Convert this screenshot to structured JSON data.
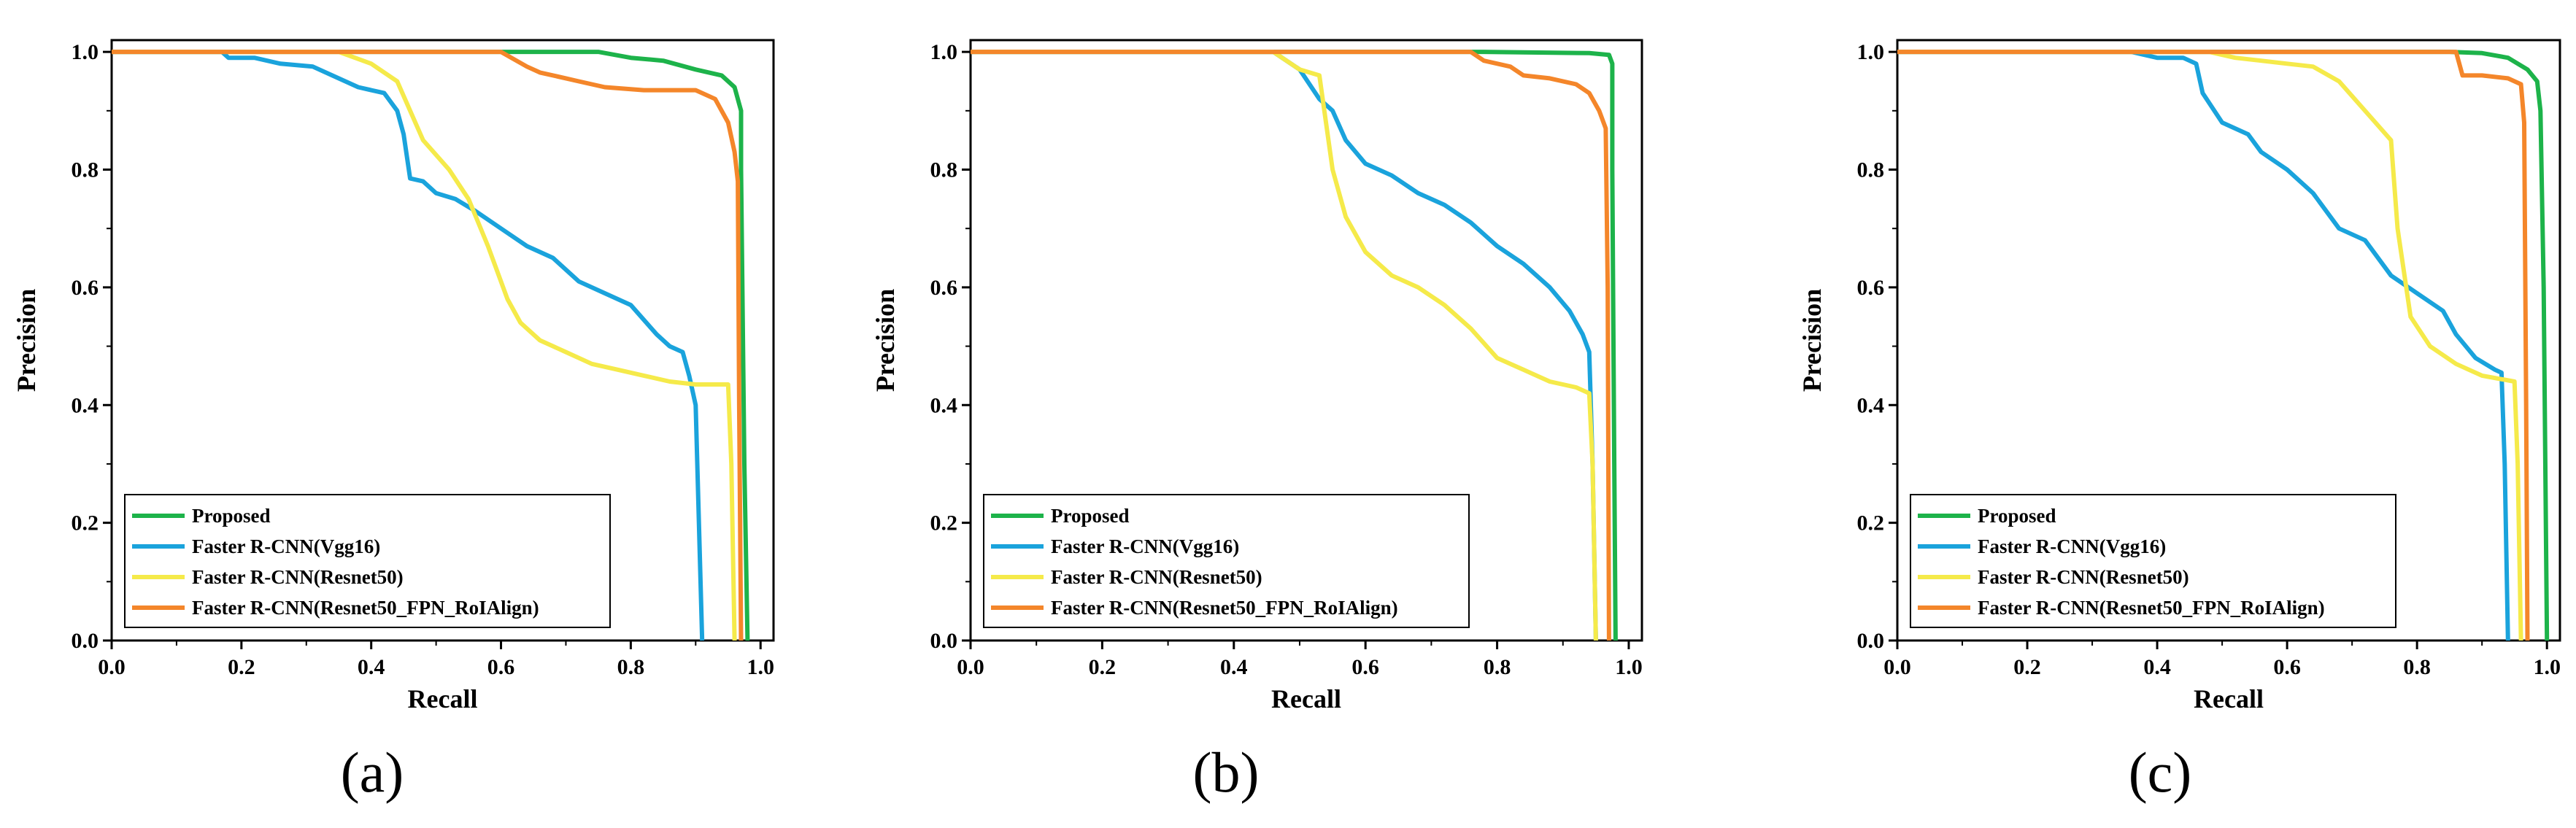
{
  "colors": {
    "Proposed": "#1db34a",
    "Faster R-CNN(Vgg16)": "#1aa3dc",
    "Faster R-CNN(Resnet50)": "#f5ea4a",
    "Faster R-CNN(Resnet50_FPN_RoIAlign)": "#f4862a"
  },
  "chart_data": [
    {
      "type": "line",
      "panel_label": "(a)",
      "xlabel": "Recall",
      "ylabel": "Precision",
      "xlim": [
        0,
        1.02
      ],
      "ylim": [
        0,
        1.02
      ],
      "xticks": [
        "0.0",
        "0.2",
        "0.4",
        "0.6",
        "0.8",
        "1.0"
      ],
      "yticks": [
        "0.0",
        "0.2",
        "0.4",
        "0.6",
        "0.8",
        "1.0"
      ],
      "legend_position": "bottom-left",
      "series": [
        {
          "name": "Proposed",
          "points": [
            [
              0,
              1.0
            ],
            [
              0.6,
              1.0
            ],
            [
              0.75,
              1.0
            ],
            [
              0.8,
              0.99
            ],
            [
              0.85,
              0.985
            ],
            [
              0.9,
              0.97
            ],
            [
              0.94,
              0.96
            ],
            [
              0.96,
              0.94
            ],
            [
              0.97,
              0.9
            ],
            [
              0.97,
              0.8
            ],
            [
              0.975,
              0.3
            ],
            [
              0.98,
              0.0
            ]
          ]
        },
        {
          "name": "Faster R-CNN(Vgg16)",
          "points": [
            [
              0,
              1.0
            ],
            [
              0.17,
              1.0
            ],
            [
              0.18,
              0.99
            ],
            [
              0.22,
              0.99
            ],
            [
              0.26,
              0.98
            ],
            [
              0.31,
              0.975
            ],
            [
              0.34,
              0.96
            ],
            [
              0.38,
              0.94
            ],
            [
              0.42,
              0.93
            ],
            [
              0.44,
              0.9
            ],
            [
              0.45,
              0.86
            ],
            [
              0.46,
              0.785
            ],
            [
              0.48,
              0.78
            ],
            [
              0.5,
              0.76
            ],
            [
              0.53,
              0.75
            ],
            [
              0.56,
              0.73
            ],
            [
              0.6,
              0.7
            ],
            [
              0.64,
              0.67
            ],
            [
              0.68,
              0.65
            ],
            [
              0.72,
              0.61
            ],
            [
              0.76,
              0.59
            ],
            [
              0.8,
              0.57
            ],
            [
              0.84,
              0.52
            ],
            [
              0.86,
              0.5
            ],
            [
              0.88,
              0.49
            ],
            [
              0.89,
              0.45
            ],
            [
              0.9,
              0.4
            ],
            [
              0.91,
              0.0
            ]
          ]
        },
        {
          "name": "Faster R-CNN(Resnet50)",
          "points": [
            [
              0,
              1.0
            ],
            [
              0.35,
              1.0
            ],
            [
              0.4,
              0.98
            ],
            [
              0.44,
              0.95
            ],
            [
              0.48,
              0.85
            ],
            [
              0.52,
              0.8
            ],
            [
              0.55,
              0.75
            ],
            [
              0.58,
              0.67
            ],
            [
              0.61,
              0.58
            ],
            [
              0.63,
              0.54
            ],
            [
              0.66,
              0.51
            ],
            [
              0.7,
              0.49
            ],
            [
              0.74,
              0.47
            ],
            [
              0.78,
              0.46
            ],
            [
              0.82,
              0.45
            ],
            [
              0.86,
              0.44
            ],
            [
              0.9,
              0.435
            ],
            [
              0.95,
              0.435
            ],
            [
              0.955,
              0.3
            ],
            [
              0.96,
              0.0
            ]
          ]
        },
        {
          "name": "Faster R-CNN(Resnet50_FPN_RoIAlign)",
          "points": [
            [
              0,
              1.0
            ],
            [
              0.6,
              1.0
            ],
            [
              0.64,
              0.975
            ],
            [
              0.66,
              0.965
            ],
            [
              0.7,
              0.955
            ],
            [
              0.72,
              0.95
            ],
            [
              0.76,
              0.94
            ],
            [
              0.82,
              0.935
            ],
            [
              0.9,
              0.935
            ],
            [
              0.93,
              0.92
            ],
            [
              0.95,
              0.88
            ],
            [
              0.96,
              0.83
            ],
            [
              0.965,
              0.78
            ],
            [
              0.967,
              0.4
            ],
            [
              0.97,
              0.0
            ]
          ]
        }
      ]
    },
    {
      "type": "line",
      "panel_label": "(b)",
      "xlabel": "Recall",
      "ylabel": "Precision",
      "xlim": [
        0,
        1.02
      ],
      "ylim": [
        0,
        1.02
      ],
      "xticks": [
        "0.0",
        "0.2",
        "0.4",
        "0.6",
        "0.8",
        "1.0"
      ],
      "yticks": [
        "0.0",
        "0.2",
        "0.4",
        "0.6",
        "0.8",
        "1.0"
      ],
      "legend_position": "bottom-left",
      "series": [
        {
          "name": "Proposed",
          "points": [
            [
              0,
              1.0
            ],
            [
              0.78,
              1.0
            ],
            [
              0.94,
              0.998
            ],
            [
              0.97,
              0.995
            ],
            [
              0.975,
              0.98
            ],
            [
              0.975,
              0.8
            ],
            [
              0.978,
              0.3
            ],
            [
              0.98,
              0.0
            ]
          ]
        },
        {
          "name": "Faster R-CNN(Vgg16)",
          "points": [
            [
              0,
              1.0
            ],
            [
              0.46,
              1.0
            ],
            [
              0.5,
              0.97
            ],
            [
              0.53,
              0.92
            ],
            [
              0.55,
              0.9
            ],
            [
              0.57,
              0.85
            ],
            [
              0.6,
              0.81
            ],
            [
              0.64,
              0.79
            ],
            [
              0.68,
              0.76
            ],
            [
              0.72,
              0.74
            ],
            [
              0.76,
              0.71
            ],
            [
              0.8,
              0.67
            ],
            [
              0.84,
              0.64
            ],
            [
              0.88,
              0.6
            ],
            [
              0.91,
              0.56
            ],
            [
              0.93,
              0.52
            ],
            [
              0.94,
              0.49
            ],
            [
              0.945,
              0.3
            ],
            [
              0.95,
              0.0
            ]
          ]
        },
        {
          "name": "Faster R-CNN(Resnet50)",
          "points": [
            [
              0,
              1.0
            ],
            [
              0.46,
              1.0
            ],
            [
              0.5,
              0.97
            ],
            [
              0.53,
              0.96
            ],
            [
              0.55,
              0.8
            ],
            [
              0.57,
              0.72
            ],
            [
              0.6,
              0.66
            ],
            [
              0.64,
              0.62
            ],
            [
              0.68,
              0.6
            ],
            [
              0.72,
              0.57
            ],
            [
              0.76,
              0.53
            ],
            [
              0.8,
              0.48
            ],
            [
              0.84,
              0.46
            ],
            [
              0.88,
              0.44
            ],
            [
              0.92,
              0.43
            ],
            [
              0.94,
              0.42
            ],
            [
              0.945,
              0.3
            ],
            [
              0.95,
              0.0
            ]
          ]
        },
        {
          "name": "Faster R-CNN(Resnet50_FPN_RoIAlign)",
          "points": [
            [
              0,
              1.0
            ],
            [
              0.76,
              1.0
            ],
            [
              0.78,
              0.985
            ],
            [
              0.82,
              0.975
            ],
            [
              0.84,
              0.96
            ],
            [
              0.88,
              0.955
            ],
            [
              0.92,
              0.945
            ],
            [
              0.94,
              0.93
            ],
            [
              0.955,
              0.9
            ],
            [
              0.965,
              0.87
            ],
            [
              0.968,
              0.6
            ],
            [
              0.97,
              0.0
            ]
          ]
        }
      ]
    },
    {
      "type": "line",
      "panel_label": "(c)",
      "xlabel": "Recall",
      "ylabel": "Precision",
      "xlim": [
        0,
        1.02
      ],
      "ylim": [
        0,
        1.02
      ],
      "xticks": [
        "0.0",
        "0.2",
        "0.4",
        "0.6",
        "0.8",
        "1.0"
      ],
      "yticks": [
        "0.0",
        "0.2",
        "0.4",
        "0.6",
        "0.8",
        "1.0"
      ],
      "legend_position": "bottom-left",
      "series": [
        {
          "name": "Proposed",
          "points": [
            [
              0,
              1.0
            ],
            [
              0.85,
              1.0
            ],
            [
              0.9,
              0.998
            ],
            [
              0.94,
              0.99
            ],
            [
              0.97,
              0.97
            ],
            [
              0.985,
              0.95
            ],
            [
              0.99,
              0.9
            ],
            [
              0.995,
              0.6
            ],
            [
              1.0,
              0.0
            ]
          ]
        },
        {
          "name": "Faster R-CNN(Vgg16)",
          "points": [
            [
              0,
              1.0
            ],
            [
              0.36,
              1.0
            ],
            [
              0.4,
              0.99
            ],
            [
              0.44,
              0.99
            ],
            [
              0.46,
              0.98
            ],
            [
              0.47,
              0.93
            ],
            [
              0.5,
              0.88
            ],
            [
              0.54,
              0.86
            ],
            [
              0.56,
              0.83
            ],
            [
              0.6,
              0.8
            ],
            [
              0.64,
              0.76
            ],
            [
              0.68,
              0.7
            ],
            [
              0.72,
              0.68
            ],
            [
              0.76,
              0.62
            ],
            [
              0.8,
              0.59
            ],
            [
              0.84,
              0.56
            ],
            [
              0.86,
              0.52
            ],
            [
              0.89,
              0.48
            ],
            [
              0.92,
              0.46
            ],
            [
              0.93,
              0.455
            ],
            [
              0.935,
              0.3
            ],
            [
              0.94,
              0.0
            ]
          ]
        },
        {
          "name": "Faster R-CNN(Resnet50)",
          "points": [
            [
              0,
              1.0
            ],
            [
              0.48,
              1.0
            ],
            [
              0.52,
              0.99
            ],
            [
              0.56,
              0.985
            ],
            [
              0.6,
              0.98
            ],
            [
              0.64,
              0.975
            ],
            [
              0.68,
              0.95
            ],
            [
              0.72,
              0.9
            ],
            [
              0.76,
              0.85
            ],
            [
              0.77,
              0.7
            ],
            [
              0.79,
              0.55
            ],
            [
              0.82,
              0.5
            ],
            [
              0.86,
              0.47
            ],
            [
              0.9,
              0.45
            ],
            [
              0.95,
              0.44
            ],
            [
              0.955,
              0.3
            ],
            [
              0.96,
              0.0
            ]
          ]
        },
        {
          "name": "Faster R-CNN(Resnet50_FPN_RoIAlign)",
          "points": [
            [
              0,
              1.0
            ],
            [
              0.86,
              1.0
            ],
            [
              0.87,
              0.96
            ],
            [
              0.9,
              0.96
            ],
            [
              0.94,
              0.955
            ],
            [
              0.96,
              0.945
            ],
            [
              0.965,
              0.88
            ],
            [
              0.968,
              0.4
            ],
            [
              0.97,
              0.0
            ]
          ]
        }
      ]
    }
  ]
}
